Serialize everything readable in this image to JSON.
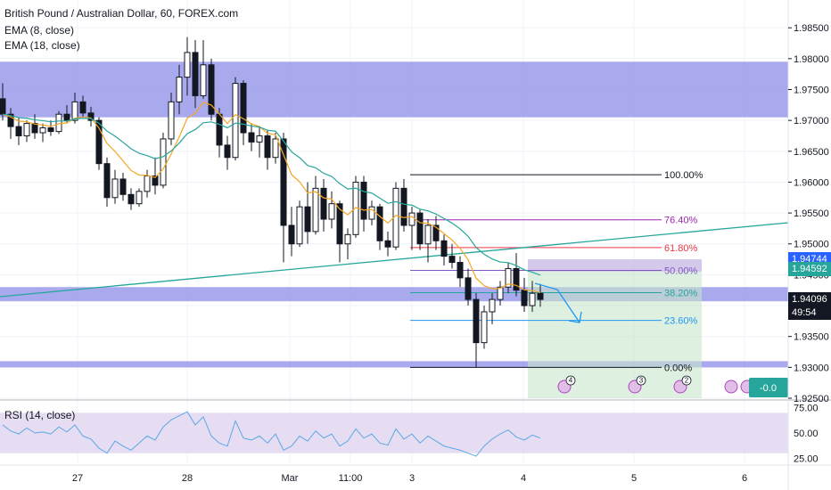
{
  "header": {
    "title": "British Pound / Australian Dollar, 60, FOREX.com",
    "ema_fast": "EMA (8, close)",
    "ema_slow": "EMA (18, close)",
    "rsi_label": "RSI (14, close)"
  },
  "colors": {
    "bull": "#ffffff",
    "bear": "#131722",
    "ema_fast": "#f5a623",
    "ema_slow": "#26a69a",
    "zone": "#8c8ce8",
    "trendline": "#26a69a",
    "target_zone": "#c8e6c9",
    "stop_zone": "#b39ddb",
    "rsi_band": "#e1d5f0",
    "rsi_line": "#5aa8e6",
    "tag_blue": "#2962ff",
    "tag_dark": "#131722",
    "tag_purple": "#7e57c2",
    "tag_green": "#26a69a"
  },
  "price_axis": {
    "ticks": [
      "1.98500",
      "1.98000",
      "1.97500",
      "1.97000",
      "1.96500",
      "1.96000",
      "1.95500",
      "1.95000",
      "1.94500",
      "1.94000",
      "1.93500",
      "1.93000",
      "1.92500"
    ],
    "tags": [
      {
        "text": "1.94744",
        "price": 1.94744,
        "color": "#2962ff"
      },
      {
        "text": "1.94592",
        "price": 1.94592,
        "color": "#26a69a"
      },
      {
        "text": "1.94096",
        "price": 1.94096,
        "color": "#131722"
      },
      {
        "text": "49:54",
        "price": 1.9388,
        "color": "#131722"
      }
    ]
  },
  "rsi_axis": {
    "ticks": [
      "75.00",
      "50.00",
      "25.00"
    ]
  },
  "time_axis": {
    "ticks": [
      "27",
      "28",
      "Mar",
      "11:00",
      "3",
      "4",
      "5",
      "6"
    ]
  },
  "fib": {
    "levels": [
      {
        "label": "100.00%",
        "price": 1.9612,
        "color": "#131722"
      },
      {
        "label": "76.40%",
        "price": 1.9539,
        "color": "#9c27b0"
      },
      {
        "label": "61.80%",
        "price": 1.9494,
        "color": "#f23645"
      },
      {
        "label": "50.00%",
        "price": 1.9457,
        "color": "#7e57c2"
      },
      {
        "label": "38.20%",
        "price": 1.9421,
        "color": "#26a69a"
      },
      {
        "label": "23.60%",
        "price": 1.9376,
        "color": "#2196f3"
      },
      {
        "label": "0.00%",
        "price": 1.93,
        "color": "#131722"
      }
    ]
  },
  "chart_data": {
    "type": "candlestick",
    "title": "British Pound / Australian Dollar, 60, FOREX.com",
    "ylim": [
      1.925,
      1.9895
    ],
    "zones": [
      {
        "from": 1.9705,
        "to": 1.9795
      },
      {
        "from": 1.9407,
        "to": 1.943
      },
      {
        "from": 1.93,
        "to": 1.931
      }
    ],
    "candles": [
      [
        1.9735,
        1.976,
        1.97,
        1.971
      ],
      [
        1.971,
        1.972,
        1.967,
        1.969
      ],
      [
        1.969,
        1.9705,
        1.966,
        1.9675
      ],
      [
        1.9675,
        1.97,
        1.9665,
        1.9695
      ],
      [
        1.9695,
        1.971,
        1.967,
        1.968
      ],
      [
        1.968,
        1.9695,
        1.9665,
        1.9688
      ],
      [
        1.9688,
        1.97,
        1.9675,
        1.9682
      ],
      [
        1.9682,
        1.9715,
        1.9678,
        1.971
      ],
      [
        1.971,
        1.9725,
        1.9695,
        1.97
      ],
      [
        1.97,
        1.9745,
        1.9695,
        1.973
      ],
      [
        1.973,
        1.974,
        1.9705,
        1.9712
      ],
      [
        1.9712,
        1.9722,
        1.969,
        1.97
      ],
      [
        1.97,
        1.9705,
        1.962,
        1.963
      ],
      [
        1.963,
        1.964,
        1.956,
        1.9575
      ],
      [
        1.9575,
        1.962,
        1.9565,
        1.9605
      ],
      [
        1.9605,
        1.9615,
        1.957,
        1.958
      ],
      [
        1.958,
        1.959,
        1.9555,
        1.9565
      ],
      [
        1.9565,
        1.959,
        1.956,
        1.9585
      ],
      [
        1.9585,
        1.962,
        1.9575,
        1.961
      ],
      [
        1.961,
        1.964,
        1.958,
        1.9595
      ],
      [
        1.9595,
        1.968,
        1.959,
        1.967
      ],
      [
        1.967,
        1.9745,
        1.966,
        1.973
      ],
      [
        1.973,
        1.979,
        1.971,
        1.977
      ],
      [
        1.977,
        1.9835,
        1.974,
        1.981
      ],
      [
        1.981,
        1.983,
        1.972,
        1.974
      ],
      [
        1.974,
        1.983,
        1.9735,
        1.979
      ],
      [
        1.979,
        1.98,
        1.97,
        1.971
      ],
      [
        1.971,
        1.972,
        1.964,
        1.966
      ],
      [
        1.966,
        1.9675,
        1.962,
        1.964
      ],
      [
        1.964,
        1.977,
        1.9635,
        1.976
      ],
      [
        1.976,
        1.9765,
        1.966,
        1.968
      ],
      [
        1.968,
        1.9695,
        1.965,
        1.9665
      ],
      [
        1.9665,
        1.969,
        1.964,
        1.9675
      ],
      [
        1.9675,
        1.9685,
        1.962,
        1.964
      ],
      [
        1.964,
        1.968,
        1.963,
        1.967
      ],
      [
        1.967,
        1.968,
        1.947,
        1.953
      ],
      [
        1.953,
        1.956,
        1.948,
        1.95
      ],
      [
        1.95,
        1.957,
        1.9495,
        1.956
      ],
      [
        1.956,
        1.96,
        1.95,
        1.952
      ],
      [
        1.952,
        1.961,
        1.9515,
        1.959
      ],
      [
        1.959,
        1.9605,
        1.952,
        1.954
      ],
      [
        1.954,
        1.9585,
        1.9525,
        1.9565
      ],
      [
        1.9565,
        1.957,
        1.947,
        1.95
      ],
      [
        1.95,
        1.9525,
        1.9475,
        1.9515
      ],
      [
        1.9515,
        1.961,
        1.951,
        1.96
      ],
      [
        1.96,
        1.961,
        1.952,
        1.954
      ],
      [
        1.954,
        1.957,
        1.953,
        1.956
      ],
      [
        1.956,
        1.9565,
        1.949,
        1.9505
      ],
      [
        1.9505,
        1.952,
        1.948,
        1.9495
      ],
      [
        1.9495,
        1.96,
        1.949,
        1.959
      ],
      [
        1.959,
        1.9605,
        1.952,
        1.953
      ],
      [
        1.953,
        1.956,
        1.949,
        1.955
      ],
      [
        1.955,
        1.9555,
        1.949,
        1.95
      ],
      [
        1.95,
        1.954,
        1.947,
        1.953
      ],
      [
        1.953,
        1.9545,
        1.949,
        1.9505
      ],
      [
        1.9505,
        1.9515,
        1.9465,
        1.948
      ],
      [
        1.948,
        1.95,
        1.946,
        1.947
      ],
      [
        1.947,
        1.948,
        1.943,
        1.9445
      ],
      [
        1.9445,
        1.946,
        1.94,
        1.941
      ],
      [
        1.941,
        1.942,
        1.93,
        1.934
      ],
      [
        1.934,
        1.94,
        1.933,
        1.939
      ],
      [
        1.939,
        1.942,
        1.937,
        1.941
      ],
      [
        1.941,
        1.944,
        1.94,
        1.943
      ],
      [
        1.943,
        1.947,
        1.942,
        1.946
      ],
      [
        1.946,
        1.9485,
        1.9415,
        1.9425
      ],
      [
        1.9425,
        1.9445,
        1.939,
        1.94
      ],
      [
        1.94,
        1.944,
        1.939,
        1.942
      ],
      [
        1.942,
        1.9435,
        1.9398,
        1.941
      ]
    ],
    "rsi": [
      58,
      52,
      49,
      55,
      50,
      51,
      49,
      56,
      51,
      58,
      47,
      44,
      35,
      30,
      42,
      37,
      33,
      40,
      47,
      43,
      56,
      63,
      67,
      71,
      58,
      66,
      47,
      40,
      37,
      62,
      45,
      43,
      47,
      40,
      49,
      33,
      37,
      47,
      42,
      52,
      45,
      49,
      37,
      42,
      54,
      45,
      49,
      40,
      38,
      54,
      44,
      49,
      40,
      47,
      42,
      37,
      35,
      33,
      30,
      27,
      37,
      44,
      49,
      53,
      46,
      43,
      48,
      45
    ],
    "rsi_ylim": [
      20,
      80
    ]
  },
  "events": [
    {
      "count": "4",
      "label": "4"
    },
    {
      "count": "3",
      "label": "3"
    },
    {
      "count": "2",
      "label": "2"
    },
    {
      "count": "",
      "label": ""
    },
    {
      "count": "",
      "label": ""
    }
  ],
  "position_label": "-0.0"
}
